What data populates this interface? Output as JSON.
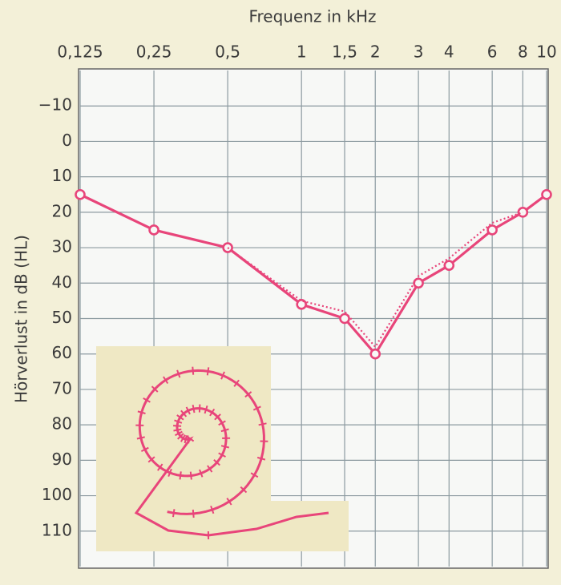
{
  "chart_data": {
    "type": "line",
    "xlabel": "Frequenz in kHz",
    "ylabel": "Hörverlust in dB (HL)",
    "x": [
      0.125,
      0.25,
      0.5,
      1,
      1.5,
      2,
      3,
      4,
      6,
      8,
      10
    ],
    "xscale": "log",
    "xlim": [
      0.125,
      10
    ],
    "xticks": [
      {
        "value": 0.125,
        "label": "0,125"
      },
      {
        "value": 0.25,
        "label": "0,25"
      },
      {
        "value": 0.5,
        "label": "0,5"
      },
      1,
      {
        "value": 1.5,
        "label": "1,5"
      },
      2,
      3,
      4,
      6,
      8,
      10
    ],
    "ylim": [
      -20,
      120
    ],
    "yinverted": true,
    "yticks": [
      {
        "value": -10,
        "label": "−10"
      },
      0,
      10,
      20,
      30,
      40,
      50,
      60,
      70,
      80,
      90,
      100,
      110
    ],
    "grid": true,
    "series": [
      {
        "color": "#e8457a",
        "style": "solid",
        "markers": true,
        "values": [
          15,
          25,
          30,
          46,
          50,
          60,
          40,
          35,
          25,
          20,
          15
        ]
      },
      {
        "color": "#e8457a",
        "style": "dotted",
        "markers": false,
        "values": [
          null,
          null,
          30,
          45,
          48,
          58,
          38,
          33,
          23,
          20,
          null
        ]
      }
    ]
  }
}
